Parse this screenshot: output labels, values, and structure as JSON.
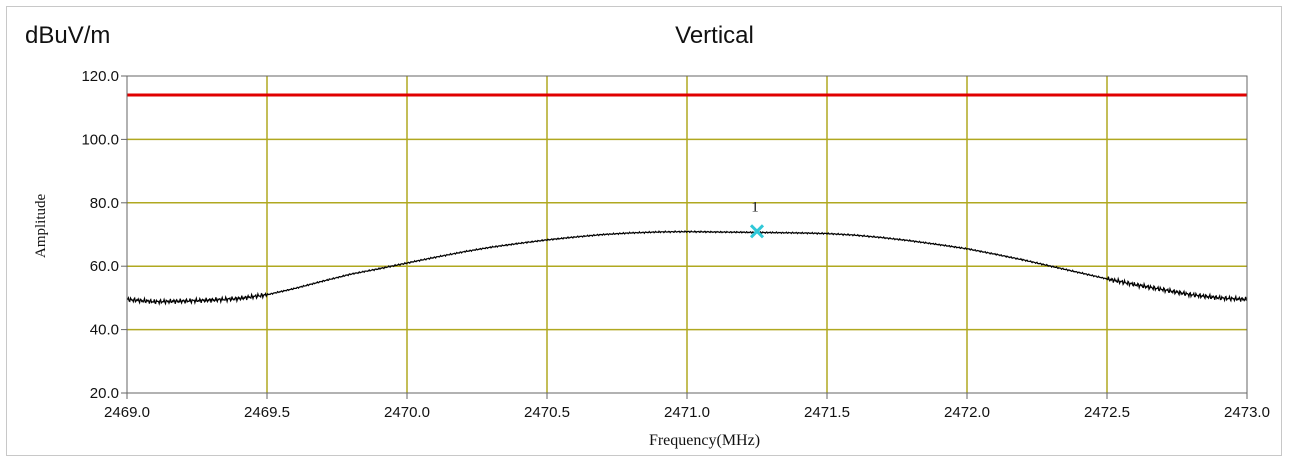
{
  "chart_data": {
    "type": "line",
    "title": "Vertical",
    "unit_label": "dBuV/m",
    "xlabel": "Frequency(MHz)",
    "ylabel": "Amplitude",
    "xlim": [
      2469.0,
      2473.0
    ],
    "ylim": [
      20.0,
      120.0
    ],
    "x_ticks": [
      2469.0,
      2469.5,
      2470.0,
      2470.5,
      2471.0,
      2471.5,
      2472.0,
      2472.5,
      2473.0
    ],
    "x_tick_labels": [
      "2469.0",
      "2469.5",
      "2470.0",
      "2470.5",
      "2471.0",
      "2471.5",
      "2472.0",
      "2472.5",
      "2473.0"
    ],
    "y_ticks": [
      20.0,
      40.0,
      60.0,
      80.0,
      100.0,
      120.0
    ],
    "y_tick_labels": [
      "20.0",
      "40.0",
      "60.0",
      "80.0",
      "100.0",
      "120.0"
    ],
    "grid": true,
    "limit_line": {
      "y": 114.0,
      "color": "#e00000"
    },
    "series": [
      {
        "color": "#000000",
        "x": [
          2469.0,
          2469.1,
          2469.2,
          2469.3,
          2469.4,
          2469.5,
          2469.6,
          2469.7,
          2469.8,
          2469.9,
          2470.0,
          2470.1,
          2470.2,
          2470.3,
          2470.4,
          2470.5,
          2470.6,
          2470.7,
          2470.8,
          2470.9,
          2471.0,
          2471.1,
          2471.2,
          2471.3,
          2471.4,
          2471.5,
          2471.6,
          2471.7,
          2471.8,
          2471.9,
          2472.0,
          2472.1,
          2472.2,
          2472.3,
          2472.4,
          2472.5,
          2472.6,
          2472.7,
          2472.8,
          2472.9,
          2473.0
        ],
        "y": [
          49.5,
          48.8,
          49.0,
          49.3,
          49.8,
          51.0,
          53.0,
          55.3,
          57.5,
          59.2,
          61.0,
          62.8,
          64.5,
          66.0,
          67.2,
          68.3,
          69.2,
          70.0,
          70.5,
          70.8,
          70.9,
          70.8,
          70.7,
          70.6,
          70.5,
          70.3,
          69.8,
          69.0,
          68.0,
          66.8,
          65.5,
          63.8,
          62.0,
          60.0,
          58.0,
          56.0,
          54.2,
          52.6,
          51.0,
          50.0,
          49.5
        ]
      }
    ],
    "marker": {
      "label": "1",
      "x": 2471.25,
      "y": 71.0,
      "color": "#30c8d8"
    },
    "colors": {
      "grid": "#b0a820",
      "axis": "#666666",
      "background": "#ffffff"
    }
  }
}
